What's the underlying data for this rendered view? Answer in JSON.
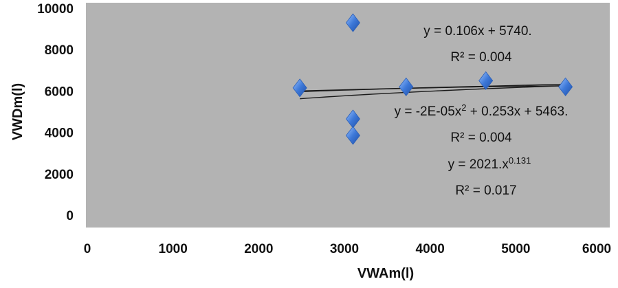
{
  "chart_data": {
    "type": "scatter",
    "title": "",
    "xlabel": "VWAm(l)",
    "ylabel": "VWDm(l)",
    "xlim": [
      0,
      6000
    ],
    "ylim": [
      0,
      10000
    ],
    "x_ticks": [
      "0",
      "1000",
      "2000",
      "3000",
      "4000",
      "5000",
      "6000"
    ],
    "y_ticks": [
      "0",
      "2000",
      "4000",
      "6000",
      "8000",
      "10000"
    ],
    "grid": false,
    "plot_background": "#b3b3b3",
    "marker_color": "#3d78d8",
    "points": [
      {
        "x": 2480,
        "y": 6150
      },
      {
        "x": 3100,
        "y": 9300
      },
      {
        "x": 3100,
        "y": 4650
      },
      {
        "x": 3100,
        "y": 3850
      },
      {
        "x": 3720,
        "y": 6200
      },
      {
        "x": 4650,
        "y": 6500
      },
      {
        "x": 5580,
        "y": 6200
      }
    ],
    "trendlines": [
      {
        "kind": "linear",
        "a": 0.106,
        "b": 5740,
        "equation": "y = 0.106x + 5740.",
        "r2": "R² = 0.004"
      },
      {
        "kind": "polynomial",
        "a": -2e-05,
        "b": 0.253,
        "c": 5463,
        "equation_main": "y = -2E-05x",
        "equation_sup": "2",
        "equation_tail": " + 0.253x + 5463.",
        "r2": "R² = 0.004"
      },
      {
        "kind": "power",
        "a": 2021,
        "b": 0.131,
        "equation_main": "y = 2021.x",
        "equation_sup": "0.131",
        "r2": "R² = 0.017"
      }
    ]
  }
}
